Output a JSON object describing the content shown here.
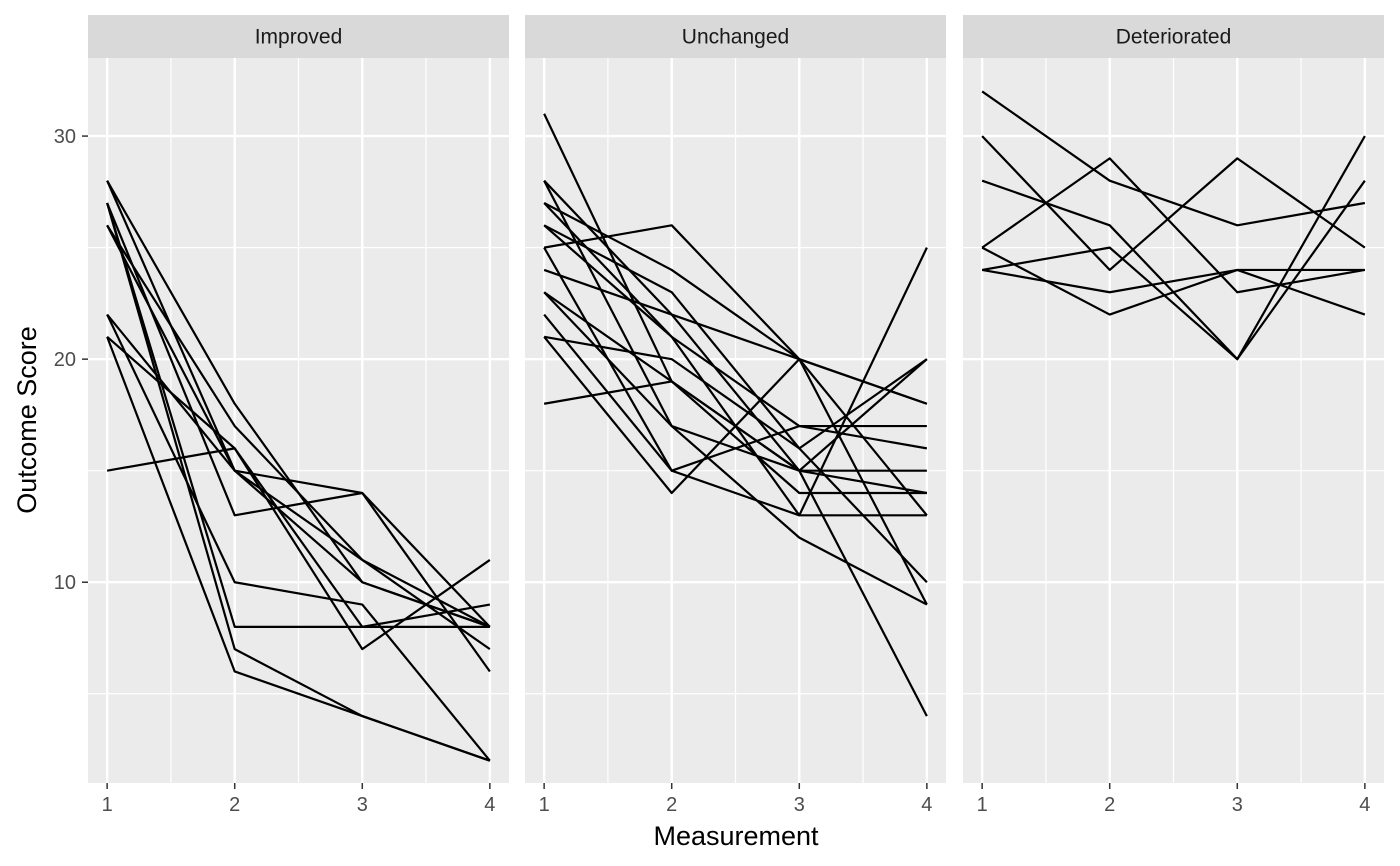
{
  "chart_data": {
    "type": "line",
    "xlabel": "Measurement",
    "ylabel": "Outcome Score",
    "x": [
      1,
      2,
      3,
      4
    ],
    "x_tick_labels": [
      "1",
      "2",
      "3",
      "4"
    ],
    "y_ticks": [
      10,
      20,
      30
    ],
    "y_tick_labels": [
      "10",
      "20",
      "30"
    ],
    "ylim": [
      1,
      33.5
    ],
    "xlim": [
      0.85,
      4.15
    ],
    "grid": true,
    "legend": "none",
    "colors": {
      "panel_bg": "#ebebeb",
      "strip_bg": "#d9d9d9",
      "grid": "#ffffff",
      "line": "#000000"
    },
    "panels": [
      {
        "label": "Improved",
        "series": [
          {
            "values": [
              28,
              18,
              10,
              8
            ]
          },
          {
            "values": [
              28,
              15,
              14,
              6
            ]
          },
          {
            "values": [
              27,
              13,
              14,
              8
            ]
          },
          {
            "values": [
              27,
              7,
              4,
              2
            ]
          },
          {
            "values": [
              26,
              17,
              11,
              7
            ]
          },
          {
            "values": [
              26,
              15,
              11,
              8
            ]
          },
          {
            "values": [
              22,
              10,
              9,
              2
            ]
          },
          {
            "values": [
              22,
              15,
              10,
              8
            ]
          },
          {
            "values": [
              21,
              16,
              7,
              11
            ]
          },
          {
            "values": [
              21,
              6,
              4,
              2
            ]
          },
          {
            "values": [
              15,
              16,
              8,
              9
            ]
          },
          {
            "values": [
              27,
              8,
              8,
              8
            ]
          }
        ]
      },
      {
        "label": "Unchanged",
        "series": [
          {
            "values": [
              31,
              19,
              15,
              14
            ]
          },
          {
            "values": [
              28,
              22,
              15,
              20
            ]
          },
          {
            "values": [
              28,
              17,
              12,
              9
            ]
          },
          {
            "values": [
              27,
              24,
              20,
              13
            ]
          },
          {
            "values": [
              27,
              21,
              13,
              13
            ]
          },
          {
            "values": [
              26,
              23,
              16,
              20
            ]
          },
          {
            "values": [
              26,
              21,
              17,
              16
            ]
          },
          {
            "values": [
              25,
              26,
              20,
              9
            ]
          },
          {
            "values": [
              25,
              15,
              17,
              17
            ]
          },
          {
            "values": [
              24,
              22,
              20,
              18
            ]
          },
          {
            "values": [
              23,
              19,
              15,
              15
            ]
          },
          {
            "values": [
              23,
              17,
              15,
              4
            ]
          },
          {
            "values": [
              22,
              15,
              13,
              25
            ]
          },
          {
            "values": [
              21,
              20,
              16,
              10
            ]
          },
          {
            "values": [
              21,
              14,
              20,
              18
            ]
          },
          {
            "values": [
              18,
              19,
              14,
              14
            ]
          }
        ]
      },
      {
        "label": "Deteriorated",
        "series": [
          {
            "values": [
              32,
              28,
              26,
              27
            ]
          },
          {
            "values": [
              30,
              24,
              29,
              25
            ]
          },
          {
            "values": [
              28,
              26,
              20,
              30
            ]
          },
          {
            "values": [
              25,
              29,
              23,
              24
            ]
          },
          {
            "values": [
              25,
              22,
              24,
              22
            ]
          },
          {
            "values": [
              24,
              25,
              20,
              28
            ]
          },
          {
            "values": [
              24,
              23,
              24,
              24
            ]
          }
        ]
      }
    ]
  }
}
